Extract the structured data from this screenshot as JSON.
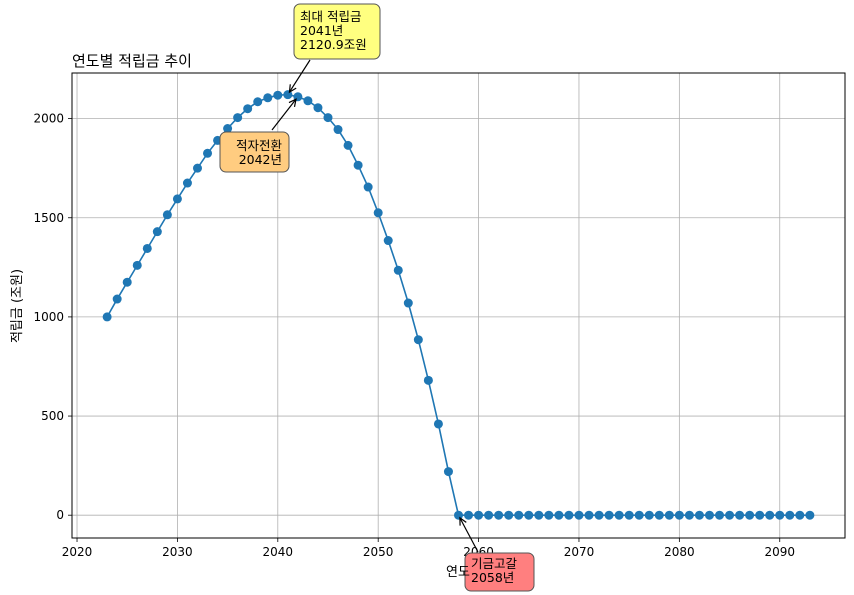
{
  "chart_data": {
    "type": "line",
    "title": "연도별 적립금 추이",
    "xlabel": "연도",
    "ylabel": "적립금 (조원)",
    "xlim": [
      2019.5,
      2096.5
    ],
    "ylim": [
      -115,
      2230
    ],
    "xticks": [
      2020,
      2030,
      2040,
      2050,
      2060,
      2070,
      2080,
      2090
    ],
    "yticks": [
      0,
      500,
      1000,
      1500,
      2000
    ],
    "grid": true,
    "series_color": "#1f77b4",
    "x": [
      2023,
      2024,
      2025,
      2026,
      2027,
      2028,
      2029,
      2030,
      2031,
      2032,
      2033,
      2034,
      2035,
      2036,
      2037,
      2038,
      2039,
      2040,
      2041,
      2042,
      2043,
      2044,
      2045,
      2046,
      2047,
      2048,
      2049,
      2050,
      2051,
      2052,
      2053,
      2054,
      2055,
      2056,
      2057,
      2058,
      2059,
      2060,
      2061,
      2062,
      2063,
      2064,
      2065,
      2066,
      2067,
      2068,
      2069,
      2070,
      2071,
      2072,
      2073,
      2074,
      2075,
      2076,
      2077,
      2078,
      2079,
      2080,
      2081,
      2082,
      2083,
      2084,
      2085,
      2086,
      2087,
      2088,
      2089,
      2090,
      2091,
      2092,
      2093
    ],
    "y": [
      1000,
      1090,
      1175,
      1260,
      1345,
      1430,
      1515,
      1595,
      1675,
      1750,
      1825,
      1890,
      1950,
      2005,
      2050,
      2085,
      2105,
      2118,
      2120.9,
      2110,
      2090,
      2055,
      2005,
      1945,
      1865,
      1765,
      1655,
      1525,
      1385,
      1235,
      1070,
      885,
      680,
      460,
      220,
      0,
      0,
      0,
      0,
      0,
      0,
      0,
      0,
      0,
      0,
      0,
      0,
      0,
      0,
      0,
      0,
      0,
      0,
      0,
      0,
      0,
      0,
      0,
      0,
      0,
      0,
      0,
      0,
      0,
      0,
      0,
      0,
      0,
      0,
      0,
      0
    ],
    "annotations": [
      {
        "lines": [
          "최대 적립금",
          "2041년",
          "2120.9조원"
        ],
        "color": "#ffff80",
        "align": "left",
        "point": [
          2041,
          2120.9
        ]
      },
      {
        "lines": [
          "적자전환",
          "2042년"
        ],
        "color": "#ffcc80",
        "align": "right",
        "point": [
          2042,
          2110
        ]
      },
      {
        "lines": [
          "기금고갈",
          "2058년"
        ],
        "color": "#ff7f7f",
        "align": "left",
        "point": [
          2058,
          0
        ]
      }
    ]
  }
}
